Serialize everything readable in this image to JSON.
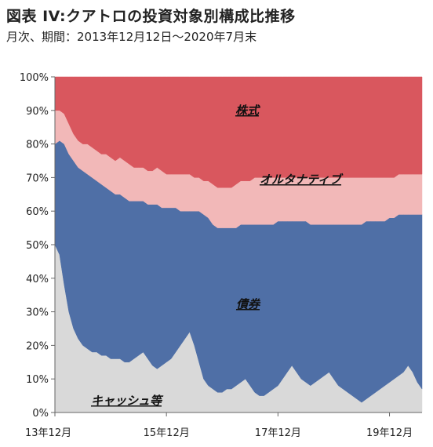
{
  "title": "図表 IV:クアトロの投資対象別構成比推移",
  "subtitle": "月次、期間：2013年12月12日～2020年7月末",
  "chart_data": {
    "type": "area",
    "stacked": "percent",
    "ylim": [
      0,
      100
    ],
    "yticks": [
      "0%",
      "10%",
      "20%",
      "30%",
      "40%",
      "50%",
      "60%",
      "70%",
      "80%",
      "90%",
      "100%"
    ],
    "xticks": [
      {
        "label": "13年12月",
        "x": 0
      },
      {
        "label": "15年12月",
        "x": 24
      },
      {
        "label": "17年12月",
        "x": 48
      },
      {
        "label": "19年12月",
        "x": 72
      }
    ],
    "x": [
      0,
      1,
      2,
      3,
      4,
      5,
      6,
      7,
      8,
      9,
      10,
      11,
      12,
      13,
      14,
      15,
      16,
      17,
      18,
      19,
      20,
      21,
      22,
      23,
      24,
      25,
      26,
      27,
      28,
      29,
      30,
      31,
      32,
      33,
      34,
      35,
      36,
      37,
      38,
      39,
      40,
      41,
      42,
      43,
      44,
      45,
      46,
      47,
      48,
      49,
      50,
      51,
      52,
      53,
      54,
      55,
      56,
      57,
      58,
      59,
      60,
      61,
      62,
      63,
      64,
      65,
      66,
      67,
      68,
      69,
      70,
      71,
      72,
      73,
      74,
      75,
      76,
      77,
      78,
      79
    ],
    "series": [
      {
        "key": "cash",
        "color": "#d9d9d9",
        "values": [
          50,
          47,
          38,
          30,
          25,
          22,
          20,
          19,
          18,
          18,
          17,
          17,
          16,
          16,
          16,
          15,
          15,
          16,
          17,
          18,
          16,
          14,
          13,
          14,
          15,
          16,
          18,
          20,
          22,
          24,
          20,
          15,
          10,
          8,
          7,
          6,
          6,
          7,
          7,
          8,
          9,
          10,
          8,
          6,
          5,
          5,
          6,
          7,
          8,
          10,
          12,
          14,
          12,
          10,
          9,
          8,
          9,
          10,
          11,
          12,
          10,
          8,
          7,
          6,
          5,
          4,
          3,
          4,
          5,
          6,
          7,
          8,
          9,
          10,
          11,
          12,
          14,
          12,
          9,
          7
        ]
      },
      {
        "key": "bonds",
        "color": "#4f6fa6",
        "values": [
          30,
          34,
          42,
          47,
          50,
          51,
          52,
          52,
          52,
          51,
          51,
          50,
          50,
          49,
          49,
          49,
          48,
          47,
          46,
          45,
          46,
          48,
          49,
          47,
          46,
          45,
          43,
          40,
          38,
          36,
          40,
          45,
          49,
          50,
          49,
          49,
          49,
          48,
          48,
          47,
          47,
          46,
          48,
          50,
          51,
          51,
          50,
          49,
          49,
          47,
          45,
          43,
          45,
          47,
          48,
          48,
          47,
          46,
          45,
          44,
          46,
          48,
          49,
          50,
          51,
          52,
          53,
          53,
          52,
          51,
          50,
          49,
          49,
          48,
          48,
          47,
          45,
          47,
          50,
          52
        ]
      },
      {
        "key": "alternative",
        "color": "#f2b8b8",
        "values": [
          10,
          9,
          9,
          9,
          8,
          8,
          8,
          9,
          9,
          9,
          9,
          10,
          10,
          10,
          11,
          11,
          11,
          10,
          10,
          10,
          10,
          10,
          11,
          11,
          10,
          10,
          10,
          11,
          11,
          11,
          10,
          10,
          10,
          11,
          12,
          12,
          12,
          12,
          12,
          13,
          13,
          13,
          13,
          14,
          14,
          14,
          14,
          14,
          13,
          13,
          13,
          13,
          13,
          13,
          13,
          14,
          14,
          14,
          14,
          14,
          14,
          14,
          14,
          14,
          14,
          14,
          14,
          13,
          13,
          13,
          13,
          13,
          12,
          12,
          12,
          12,
          12,
          12,
          12,
          12
        ]
      },
      {
        "key": "equities",
        "color": "#d9575e",
        "values": [
          10,
          10,
          11,
          14,
          17,
          19,
          20,
          20,
          21,
          22,
          23,
          23,
          24,
          25,
          24,
          25,
          26,
          27,
          27,
          27,
          28,
          28,
          27,
          28,
          29,
          29,
          29,
          29,
          29,
          29,
          30,
          30,
          31,
          31,
          32,
          33,
          33,
          33,
          33,
          32,
          31,
          31,
          31,
          30,
          30,
          30,
          30,
          30,
          30,
          30,
          30,
          30,
          30,
          30,
          30,
          30,
          30,
          30,
          30,
          30,
          30,
          30,
          30,
          30,
          30,
          30,
          30,
          30,
          30,
          30,
          30,
          30,
          30,
          30,
          29,
          29,
          29,
          29,
          29,
          29
        ]
      }
    ],
    "annotations": {
      "equities": "株式",
      "alternative": "オルタナティブ",
      "bonds": "債券",
      "cash": "キャッシュ等"
    }
  }
}
